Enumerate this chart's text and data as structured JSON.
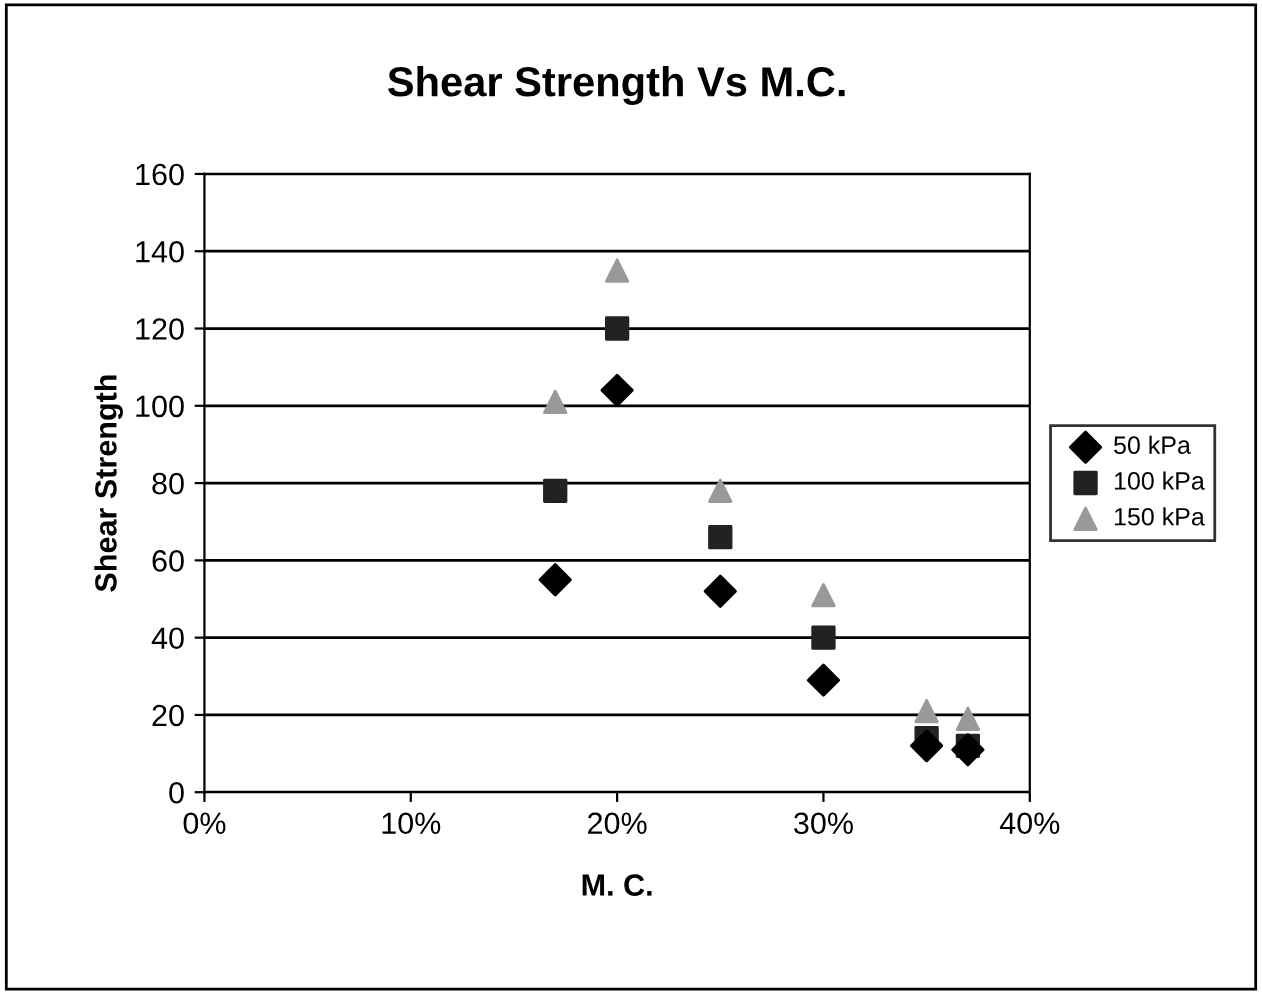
{
  "chart_data": {
    "type": "scatter",
    "title": "Shear Strength Vs M.C.",
    "xlabel": "M. C.",
    "ylabel": "Shear Strength",
    "x": [
      0.17,
      0.2,
      0.25,
      0.3,
      0.35,
      0.37
    ],
    "series": [
      {
        "name": "50 kPa",
        "color": "#000000",
        "marker": "diamond",
        "values": [
          55,
          104,
          52,
          29,
          12,
          11
        ]
      },
      {
        "name": "100 kPa",
        "color": "#222222",
        "marker": "square",
        "values": [
          78,
          120,
          66,
          40,
          14,
          12
        ]
      },
      {
        "name": "150 kPa",
        "color": "#999999",
        "marker": "triangle",
        "values": [
          101,
          135,
          78,
          51,
          21,
          19
        ]
      }
    ],
    "xlim": [
      0,
      0.4
    ],
    "xticks": [
      {
        "value": 0,
        "label": "0%"
      },
      {
        "value": 0.1,
        "label": "10%"
      },
      {
        "value": 0.2,
        "label": "20%"
      },
      {
        "value": 0.3,
        "label": "30%"
      },
      {
        "value": 0.4,
        "label": "40%"
      }
    ],
    "ylim": [
      0,
      160
    ],
    "yticks": [
      0,
      20,
      40,
      60,
      80,
      100,
      120,
      140,
      160
    ],
    "grid": "y",
    "legend": "right"
  }
}
